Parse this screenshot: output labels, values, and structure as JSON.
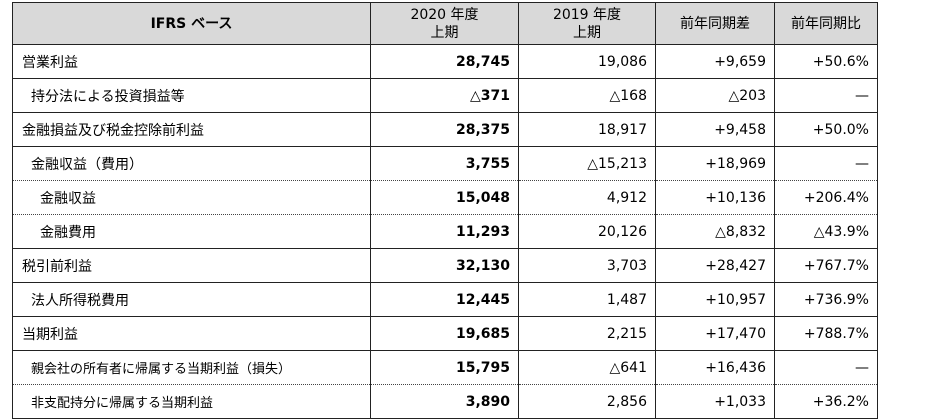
{
  "header": {
    "label": "IFRS ベース",
    "col2020_line1": "2020 年度",
    "col2020_line2": "上期",
    "col2019_line1": "2019 年度",
    "col2019_line2": "上期",
    "yoy_diff": "前年同期差",
    "yoy_ratio": "前年同期比"
  },
  "rows": [
    {
      "label": "営業利益",
      "v2020": "28,745",
      "v2019": "19,086",
      "diff": "+9,659",
      "ratio": "+50.6%"
    },
    {
      "label": "持分法による投資損益等",
      "v2020": "△371",
      "v2019": "△168",
      "diff": "△203",
      "ratio": "—"
    },
    {
      "label": "金融損益及び税金控除前利益",
      "v2020": "28,375",
      "v2019": "18,917",
      "diff": "+9,458",
      "ratio": "+50.0%"
    },
    {
      "label": "金融収益（費用）",
      "v2020": "3,755",
      "v2019": "△15,213",
      "diff": "+18,969",
      "ratio": "—"
    },
    {
      "label": "金融収益",
      "v2020": "15,048",
      "v2019": "4,912",
      "diff": "+10,136",
      "ratio": "+206.4%"
    },
    {
      "label": "金融費用",
      "v2020": "11,293",
      "v2019": "20,126",
      "diff": "△8,832",
      "ratio": "△43.9%"
    },
    {
      "label": "税引前利益",
      "v2020": "32,130",
      "v2019": "3,703",
      "diff": "+28,427",
      "ratio": "+767.7%"
    },
    {
      "label": "法人所得税費用",
      "v2020": "12,445",
      "v2019": "1,487",
      "diff": "+10,957",
      "ratio": "+736.9%"
    },
    {
      "label": "当期利益",
      "v2020": "19,685",
      "v2019": "2,215",
      "diff": "+17,470",
      "ratio": "+788.7%"
    },
    {
      "label": "親会社の所有者に帰属する当期利益（損失）",
      "v2020": "15,795",
      "v2019": "△641",
      "diff": "+16,436",
      "ratio": "—"
    },
    {
      "label": "非支配持分に帰属する当期利益",
      "v2020": "3,890",
      "v2019": "2,856",
      "diff": "+1,033",
      "ratio": "+36.2%"
    }
  ]
}
